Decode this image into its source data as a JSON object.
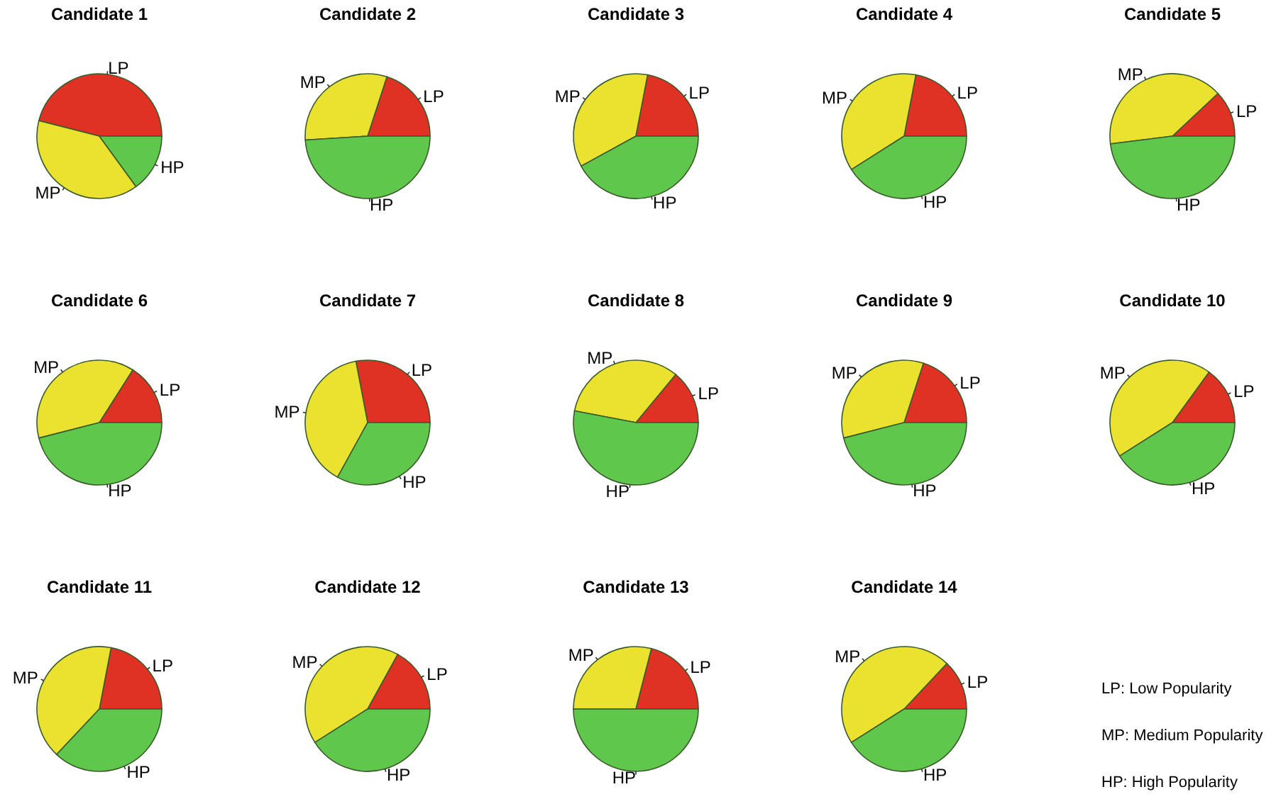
{
  "chart_data": [
    {
      "type": "pie",
      "title": "Candidate 1",
      "categories": [
        "LP",
        "MP",
        "HP"
      ],
      "values": [
        46,
        39,
        15
      ],
      "colors": [
        "#df3224",
        "#ebe22f",
        "#5fc84c"
      ]
    },
    {
      "type": "pie",
      "title": "Candidate 2",
      "categories": [
        "LP",
        "MP",
        "HP"
      ],
      "values": [
        20,
        31,
        49
      ],
      "colors": [
        "#df3224",
        "#ebe22f",
        "#5fc84c"
      ]
    },
    {
      "type": "pie",
      "title": "Candidate 3",
      "categories": [
        "LP",
        "MP",
        "HP"
      ],
      "values": [
        22,
        36,
        42
      ],
      "colors": [
        "#df3224",
        "#ebe22f",
        "#5fc84c"
      ]
    },
    {
      "type": "pie",
      "title": "Candidate 4",
      "categories": [
        "LP",
        "MP",
        "HP"
      ],
      "values": [
        22,
        37,
        41
      ],
      "colors": [
        "#df3224",
        "#ebe22f",
        "#5fc84c"
      ]
    },
    {
      "type": "pie",
      "title": "Candidate 5",
      "categories": [
        "LP",
        "MP",
        "HP"
      ],
      "values": [
        12,
        40,
        48
      ],
      "colors": [
        "#df3224",
        "#ebe22f",
        "#5fc84c"
      ]
    },
    {
      "type": "pie",
      "title": "Candidate 6",
      "categories": [
        "LP",
        "MP",
        "HP"
      ],
      "values": [
        16,
        38,
        46
      ],
      "colors": [
        "#df3224",
        "#ebe22f",
        "#5fc84c"
      ]
    },
    {
      "type": "pie",
      "title": "Candidate 7",
      "categories": [
        "LP",
        "MP",
        "HP"
      ],
      "values": [
        28,
        39,
        33
      ],
      "colors": [
        "#df3224",
        "#ebe22f",
        "#5fc84c"
      ]
    },
    {
      "type": "pie",
      "title": "Candidate 8",
      "categories": [
        "LP",
        "MP",
        "HP"
      ],
      "values": [
        14,
        33,
        53
      ],
      "colors": [
        "#df3224",
        "#ebe22f",
        "#5fc84c"
      ]
    },
    {
      "type": "pie",
      "title": "Candidate 9",
      "categories": [
        "LP",
        "MP",
        "HP"
      ],
      "values": [
        20,
        34,
        46
      ],
      "colors": [
        "#df3224",
        "#ebe22f",
        "#5fc84c"
      ]
    },
    {
      "type": "pie",
      "title": "Candidate 10",
      "categories": [
        "LP",
        "MP",
        "HP"
      ],
      "values": [
        15,
        44,
        41
      ],
      "colors": [
        "#df3224",
        "#ebe22f",
        "#5fc84c"
      ]
    },
    {
      "type": "pie",
      "title": "Candidate 11",
      "categories": [
        "LP",
        "MP",
        "HP"
      ],
      "values": [
        22,
        41,
        37
      ],
      "colors": [
        "#df3224",
        "#ebe22f",
        "#5fc84c"
      ]
    },
    {
      "type": "pie",
      "title": "Candidate 12",
      "categories": [
        "LP",
        "MP",
        "HP"
      ],
      "values": [
        17,
        42,
        41
      ],
      "colors": [
        "#df3224",
        "#ebe22f",
        "#5fc84c"
      ]
    },
    {
      "type": "pie",
      "title": "Candidate 13",
      "categories": [
        "LP",
        "MP",
        "HP"
      ],
      "values": [
        21,
        29,
        50
      ],
      "colors": [
        "#df3224",
        "#ebe22f",
        "#5fc84c"
      ]
    },
    {
      "type": "pie",
      "title": "Candidate 14",
      "categories": [
        "LP",
        "MP",
        "HP"
      ],
      "values": [
        13,
        46,
        41
      ],
      "colors": [
        "#df3224",
        "#ebe22f",
        "#5fc84c"
      ]
    },
    {
      "type": "other",
      "annotations": [
        "LP: Low Popularity",
        "MP: Medium Popularity",
        "HP: High Popularity"
      ]
    }
  ]
}
